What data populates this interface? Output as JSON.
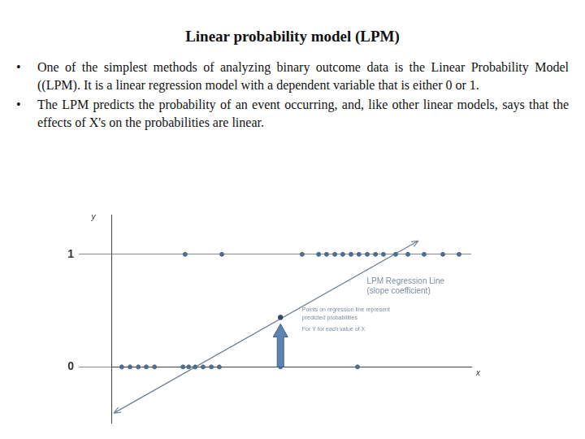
{
  "slide": {
    "title": "Linear probability model (LPM)",
    "bullets": [
      "One of the simplest methods of analyzing binary outcome data is the Linear Probability Model ((LPM). It is a linear regression model with a dependent variable that is either 0 or 1.",
      "The LPM predicts the probability of an event occurring, and, like other linear models, says that the effects of X's on the probabilities are linear."
    ]
  },
  "chart_data": {
    "type": "scatter",
    "x_label": "x",
    "y_label": "y",
    "x": [
      0.29,
      0.52,
      0.75,
      0.97,
      1.2,
      1.99,
      2.15,
      2.33,
      2.55,
      2.78,
      3.0,
      4.7,
      6.84,
      2.05,
      3.07,
      5.3,
      5.76,
      5.98,
      6.21,
      6.43,
      6.66,
      6.88,
      7.11,
      7.34,
      7.56,
      7.9,
      8.24,
      8.69,
      9.21,
      9.66
    ],
    "values": [
      0,
      0,
      0,
      0,
      0,
      0,
      0,
      0,
      0,
      0,
      0,
      0,
      0,
      1,
      1,
      1,
      1,
      1,
      1,
      1,
      1,
      1,
      1,
      1,
      1,
      1,
      1,
      1,
      1,
      1
    ],
    "color": "#4f6d8f",
    "regression_line": {
      "x": [
        0.07,
        8.53
      ],
      "values": [
        -0.41,
        1.12
      ],
      "color": "#6f7f95"
    },
    "predicted_point": {
      "x": 4.7,
      "value": 0.44,
      "color": "#2f4a6d"
    },
    "annotations": [
      {
        "text": [
          "LPM Regression Line",
          "(slope coefficient)"
        ]
      },
      {
        "text": [
          "Points on regression line represent",
          "predicted probabilities",
          "For Y for each value of X"
        ]
      }
    ],
    "xlim": [
      0,
      10
    ],
    "xticks": [],
    "ylim": [
      -0.5,
      1.35
    ],
    "yticks": [
      0,
      1
    ],
    "grid": true,
    "tick_labels": "y"
  }
}
